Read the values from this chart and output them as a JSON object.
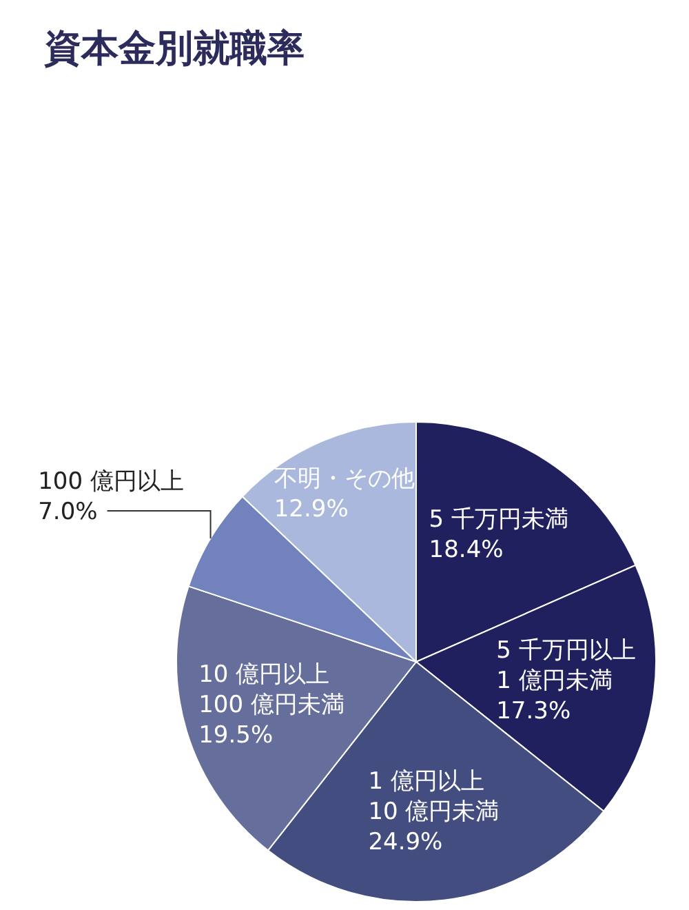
{
  "chart_data": {
    "type": "pie",
    "title": "資本金別就職率",
    "categories": [
      "5 千万円未満",
      "5 千万円以上\n1 億円未満",
      "1 億円以上\n10 億円未満",
      "10 億円以上\n100 億円未満",
      "100 億円以上",
      "不明・その他"
    ],
    "values": [
      18.4,
      17.3,
      24.9,
      19.5,
      7.0,
      12.9
    ],
    "value_labels": [
      "18.4%",
      "17.3%",
      "24.9%",
      "19.5%",
      "7.0%",
      "12.9%"
    ],
    "colors": [
      "#21205f",
      "#21205f",
      "#434d80",
      "#666e9b",
      "#7282bd",
      "#a9b8dc"
    ]
  }
}
